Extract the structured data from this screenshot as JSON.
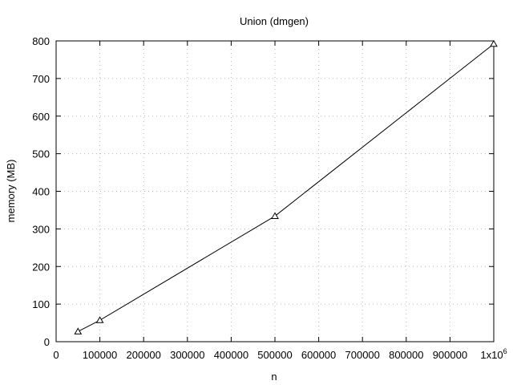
{
  "chart_data": {
    "type": "line",
    "title": "Union (dmgen)",
    "xlabel": "n",
    "ylabel": "memory (MB)",
    "xlim": [
      0,
      1000000
    ],
    "ylim": [
      0,
      800
    ],
    "grid": true,
    "x_ticks": [
      {
        "value": 0,
        "label": "0"
      },
      {
        "value": 100000,
        "label": "100000"
      },
      {
        "value": 200000,
        "label": "200000"
      },
      {
        "value": 300000,
        "label": "300000"
      },
      {
        "value": 400000,
        "label": "400000"
      },
      {
        "value": 500000,
        "label": "500000"
      },
      {
        "value": 600000,
        "label": "600000"
      },
      {
        "value": 700000,
        "label": "700000"
      },
      {
        "value": 800000,
        "label": "800000"
      },
      {
        "value": 900000,
        "label": "900000"
      },
      {
        "value": 1000000,
        "label": "1x10",
        "sup": "6"
      }
    ],
    "y_ticks": [
      {
        "value": 0,
        "label": "0"
      },
      {
        "value": 100,
        "label": "100"
      },
      {
        "value": 200,
        "label": "200"
      },
      {
        "value": 300,
        "label": "300"
      },
      {
        "value": 400,
        "label": "400"
      },
      {
        "value": 500,
        "label": "500"
      },
      {
        "value": 600,
        "label": "600"
      },
      {
        "value": 700,
        "label": "700"
      },
      {
        "value": 800,
        "label": "800"
      }
    ],
    "series": [
      {
        "x": [
          50000,
          100000,
          500000,
          1000000
        ],
        "values": [
          27,
          57,
          334,
          792
        ],
        "marker": "triangle-open",
        "color": "#000000"
      }
    ]
  }
}
